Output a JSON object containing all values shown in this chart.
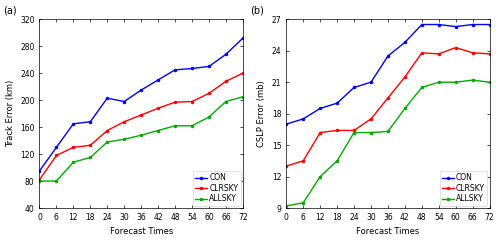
{
  "forecast_times": [
    0,
    6,
    12,
    18,
    24,
    30,
    36,
    42,
    48,
    54,
    60,
    66,
    72
  ],
  "track_CON": [
    95,
    130,
    165,
    168,
    203,
    198,
    215,
    230,
    245,
    247,
    250,
    268,
    292
  ],
  "track_CLRSKY": [
    82,
    118,
    130,
    133,
    155,
    168,
    178,
    188,
    197,
    198,
    210,
    228,
    240
  ],
  "track_ALLSKY": [
    80,
    80,
    108,
    115,
    138,
    142,
    148,
    155,
    162,
    162,
    175,
    198,
    205
  ],
  "cslp_CON": [
    17.0,
    17.5,
    18.5,
    19.0,
    20.5,
    21.0,
    23.5,
    24.8,
    26.5,
    26.5,
    26.3,
    26.5,
    26.5
  ],
  "cslp_CLRSKY": [
    13.0,
    13.5,
    16.2,
    16.4,
    16.4,
    17.5,
    19.5,
    21.5,
    23.8,
    23.7,
    24.3,
    23.8,
    23.7
  ],
  "cslp_ALLSKY": [
    9.2,
    9.5,
    12.0,
    13.5,
    16.2,
    16.2,
    16.3,
    18.5,
    20.5,
    21.0,
    21.0,
    21.2,
    21.0
  ],
  "color_CON": "#0000ff",
  "color_CLRSKY": "#ff0000",
  "color_ALLSKY": "#00aa00",
  "panel_a_title": "(a)",
  "panel_b_title": "(b)",
  "ylabel_a": "Track Error (km)",
  "ylabel_b": "CSLP Error (mb)",
  "xlabel": "Forecast Times",
  "ylim_a": [
    40,
    320
  ],
  "ylim_b": [
    9,
    27
  ],
  "yticks_a": [
    40,
    80,
    120,
    160,
    200,
    240,
    280,
    320
  ],
  "yticks_b": [
    9,
    12,
    15,
    18,
    21,
    24,
    27
  ],
  "xticks": [
    0,
    6,
    12,
    18,
    24,
    30,
    36,
    42,
    48,
    54,
    60,
    66,
    72
  ],
  "legend_labels": [
    "CON",
    "CLRSKY",
    "ALLSKY"
  ],
  "linewidth": 1.0,
  "markersize": 1.5,
  "tick_fontsize": 5.5,
  "label_fontsize": 6.0,
  "legend_fontsize": 5.5,
  "panel_label_fontsize": 7.0
}
